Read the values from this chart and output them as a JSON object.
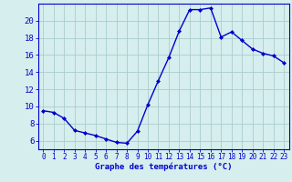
{
  "hours": [
    0,
    1,
    2,
    3,
    4,
    5,
    6,
    7,
    8,
    9,
    10,
    11,
    12,
    13,
    14,
    15,
    16,
    17,
    18,
    19,
    20,
    21,
    22,
    23
  ],
  "temps": [
    9.5,
    9.3,
    8.6,
    7.2,
    6.9,
    6.6,
    6.2,
    5.8,
    5.7,
    7.1,
    10.2,
    13.0,
    15.7,
    18.8,
    21.3,
    21.3,
    21.5,
    18.1,
    18.7,
    17.7,
    16.7,
    16.2,
    15.9,
    15.1
  ],
  "xlabel": "Graphe des températures (°C)",
  "ylim": [
    5,
    22
  ],
  "xlim": [
    -0.5,
    23.5
  ],
  "yticks": [
    6,
    8,
    10,
    12,
    14,
    16,
    18,
    20
  ],
  "xticks": [
    0,
    1,
    2,
    3,
    4,
    5,
    6,
    7,
    8,
    9,
    10,
    11,
    12,
    13,
    14,
    15,
    16,
    17,
    18,
    19,
    20,
    21,
    22,
    23
  ],
  "line_color": "#0000cc",
  "marker_color": "#0000cc",
  "bg_color": "#d6eeee",
  "grid_color": "#aacccc",
  "axis_color": "#0000cc",
  "tick_label_color": "#0000cc",
  "xlabel_color": "#0000cc",
  "xlabel_fontsize": 6.5,
  "tick_fontsize": 5.5,
  "ytick_fontsize": 6.5
}
